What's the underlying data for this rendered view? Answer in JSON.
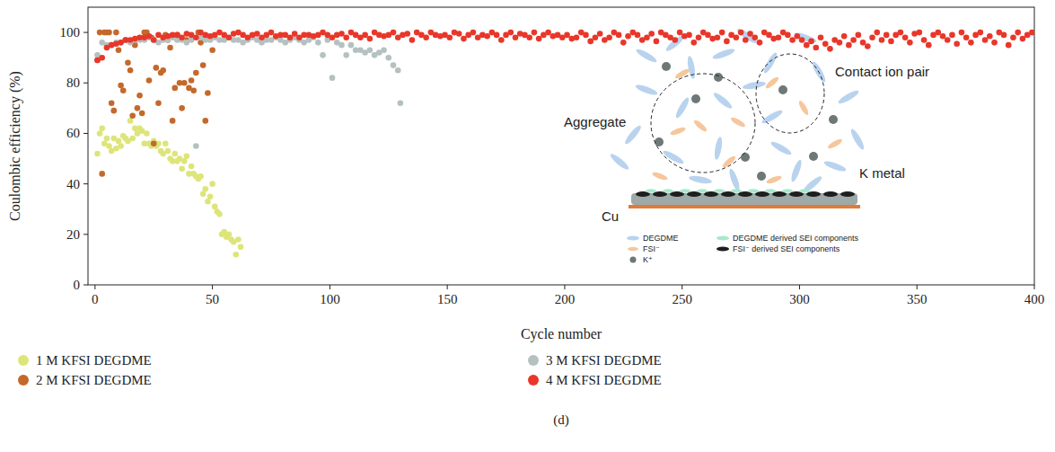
{
  "chart_data": {
    "type": "scatter",
    "xlabel": "Cycle number",
    "ylabel": "Coulombic efficiency (%)",
    "panel_label": "(d)",
    "xlim": [
      -3,
      400
    ],
    "ylim": [
      0,
      110
    ],
    "xticks": [
      0,
      50,
      100,
      150,
      200,
      250,
      300,
      350,
      400
    ],
    "yticks": [
      0,
      20,
      40,
      60,
      80,
      100
    ],
    "legend": "bottom",
    "marker": "circle",
    "annotations": [
      "Aggregate",
      "Contact ion pair",
      "K metal",
      "Cu"
    ],
    "inset_key": [
      "DEGDME",
      "FSI⁻",
      "K⁺",
      "DEGDME derived SEI components",
      "FSI⁻ derived SEI components"
    ],
    "series": [
      {
        "name": "1 M KFSI DEGDME",
        "color": "#dde57a",
        "x": [
          1,
          2,
          3,
          4,
          5,
          6,
          7,
          8,
          9,
          10,
          11,
          12,
          13,
          14,
          15,
          16,
          17,
          18,
          19,
          20,
          21,
          22,
          23,
          24,
          25,
          26,
          27,
          28,
          29,
          30,
          31,
          32,
          33,
          34,
          35,
          36,
          37,
          38,
          39,
          40,
          41,
          42,
          43,
          44,
          45,
          46,
          47,
          48,
          49,
          50,
          51,
          52,
          53,
          54,
          55,
          56,
          57,
          58,
          59,
          60,
          61,
          62
        ],
        "values": [
          52,
          60,
          62,
          56,
          58,
          55,
          53,
          58,
          54,
          57,
          55,
          59,
          58,
          57,
          65,
          58,
          62,
          60,
          62,
          61,
          56,
          60,
          56,
          55,
          57,
          55,
          56,
          53,
          52,
          56,
          53,
          50,
          49,
          52,
          49,
          50,
          46,
          49,
          51,
          44,
          47,
          44,
          43,
          42,
          43,
          36,
          38,
          33,
          35,
          40,
          31,
          29,
          28,
          20,
          21,
          19,
          20,
          18,
          17,
          12,
          18,
          15
        ]
      },
      {
        "name": "2 M KFSI DEGDME",
        "color": "#c4692b",
        "x": [
          1,
          2,
          3,
          4,
          5,
          6,
          7,
          8,
          9,
          10,
          11,
          12,
          13,
          14,
          15,
          16,
          17,
          18,
          19,
          20,
          21,
          22,
          23,
          24,
          25,
          26,
          27,
          28,
          29,
          30,
          31,
          32,
          33,
          34,
          35,
          36,
          37,
          38,
          39,
          40,
          41,
          42,
          43,
          44,
          45,
          46,
          47,
          48,
          49,
          50
        ],
        "values": [
          89,
          100,
          44,
          100,
          100,
          100,
          72,
          69,
          100,
          93,
          79,
          77,
          97,
          88,
          85,
          67,
          95,
          70,
          75,
          68,
          100,
          100,
          81,
          98,
          56,
          86,
          72,
          84,
          85,
          99,
          97,
          94,
          65,
          78,
          99,
          80,
          70,
          80,
          97,
          78,
          81,
          77,
          84,
          100,
          96,
          87,
          65,
          76,
          98,
          93
        ]
      },
      {
        "name": "3 M KFSI DEGDME",
        "color": "#b5c1c1",
        "x": [
          1,
          3,
          5,
          7,
          9,
          11,
          13,
          15,
          17,
          19,
          21,
          23,
          25,
          27,
          29,
          31,
          33,
          35,
          37,
          39,
          41,
          43,
          45,
          47,
          49,
          51,
          53,
          55,
          57,
          59,
          61,
          63,
          65,
          67,
          69,
          71,
          73,
          75,
          77,
          79,
          81,
          83,
          85,
          87,
          89,
          91,
          93,
          95,
          97,
          99,
          101,
          103,
          105,
          107,
          109,
          111,
          113,
          115,
          117,
          119,
          121,
          123,
          125,
          127,
          129,
          130
        ],
        "values": [
          91,
          96,
          95,
          95,
          96,
          96,
          97,
          96,
          97,
          97,
          97,
          98,
          97,
          96,
          97,
          97,
          98,
          97,
          97,
          96,
          97,
          55,
          98,
          97,
          97,
          98,
          97,
          97,
          98,
          97,
          97,
          96,
          97,
          98,
          97,
          96,
          97,
          97,
          98,
          97,
          96,
          97,
          98,
          97,
          96,
          97,
          98,
          96,
          91,
          97,
          82,
          96,
          95,
          91,
          95,
          93,
          93,
          92,
          93,
          91,
          92,
          93,
          90,
          87,
          85,
          72
        ]
      },
      {
        "name": "4 M KFSI DEGDME",
        "color": "#e8372a",
        "x": [
          1,
          3,
          5,
          7,
          9,
          11,
          13,
          15,
          17,
          19,
          21,
          23,
          25,
          27,
          29,
          31,
          33,
          35,
          37,
          39,
          41,
          43,
          45,
          47,
          49,
          51,
          53,
          55,
          57,
          59,
          61,
          63,
          65,
          67,
          69,
          71,
          73,
          75,
          77,
          79,
          81,
          83,
          85,
          87,
          89,
          91,
          93,
          95,
          97,
          99,
          101,
          103,
          105,
          107,
          109,
          111,
          113,
          115,
          117,
          119,
          121,
          123,
          125,
          127,
          129,
          131,
          133,
          135,
          137,
          139,
          141,
          143,
          145,
          147,
          149,
          151,
          153,
          155,
          157,
          159,
          161,
          163,
          165,
          167,
          169,
          171,
          173,
          175,
          177,
          179,
          181,
          183,
          185,
          187,
          189,
          191,
          193,
          195,
          197,
          199,
          201,
          203,
          205,
          207,
          209,
          211,
          213,
          215,
          217,
          219,
          221,
          223,
          225,
          227,
          229,
          231,
          233,
          235,
          237,
          239,
          241,
          243,
          245,
          247,
          249,
          251,
          253,
          255,
          257,
          259,
          261,
          263,
          265,
          267,
          269,
          271,
          273,
          275,
          277,
          279,
          281,
          283,
          285,
          287,
          289,
          291,
          293,
          295,
          297,
          299,
          301,
          303,
          305,
          307,
          309,
          311,
          313,
          315,
          317,
          319,
          321,
          323,
          325,
          327,
          329,
          331,
          333,
          335,
          337,
          339,
          341,
          343,
          345,
          347,
          349,
          351,
          353,
          355,
          357,
          359,
          361,
          363,
          365,
          367,
          369,
          371,
          373,
          375,
          377,
          379,
          381,
          383,
          385,
          387,
          389,
          391,
          393,
          395,
          397,
          399
        ],
        "values": [
          89,
          90,
          94,
          95,
          95.5,
          96,
          97,
          97,
          97.5,
          98,
          98,
          98.5,
          97,
          99,
          98,
          98.5,
          99,
          99,
          98,
          99.5,
          99,
          98,
          100,
          99,
          98.5,
          99,
          100,
          99,
          98,
          99.5,
          100,
          99,
          98,
          99,
          99.5,
          98,
          99,
          100,
          98.5,
          99,
          99,
          98,
          99.5,
          98,
          99,
          99,
          98.5,
          99,
          100,
          99,
          98,
          99,
          99.5,
          98,
          100,
          99,
          98,
          99,
          97.5,
          100,
          99,
          98.5,
          99,
          100,
          98,
          99,
          99.5,
          97,
          100,
          99,
          98,
          100,
          99,
          98.5,
          99,
          98,
          100,
          99.5,
          97.5,
          99,
          100,
          98,
          99,
          98.5,
          100,
          99,
          97,
          99,
          100,
          98,
          99.5,
          99,
          98,
          100,
          97.5,
          99,
          100,
          98.5,
          99,
          98,
          99,
          97.5,
          98,
          100,
          99,
          96.5,
          98,
          99.5,
          97,
          98,
          100,
          99,
          96,
          98.5,
          100,
          99,
          97,
          98,
          99.5,
          96.5,
          100,
          99,
          98,
          97,
          100,
          98.5,
          99,
          96,
          98,
          100,
          99,
          97.5,
          98,
          100,
          96.5,
          99,
          98,
          100,
          97,
          99.5,
          98,
          96,
          100,
          99,
          97.5,
          98,
          100,
          99,
          97,
          98.5,
          97,
          95,
          96.5,
          94,
          98,
          95.5,
          93.5,
          97,
          96,
          98.5,
          95,
          97,
          99,
          96,
          94.5,
          98,
          100,
          97,
          99,
          96.5,
          99,
          100,
          98,
          96,
          99.5,
          100,
          97,
          95,
          99,
          100,
          98.5,
          97,
          99,
          95.5,
          100,
          98,
          96,
          99,
          100,
          97,
          98.5,
          96,
          100,
          99,
          95,
          98,
          100,
          97.5,
          99,
          100
        ]
      }
    ]
  }
}
